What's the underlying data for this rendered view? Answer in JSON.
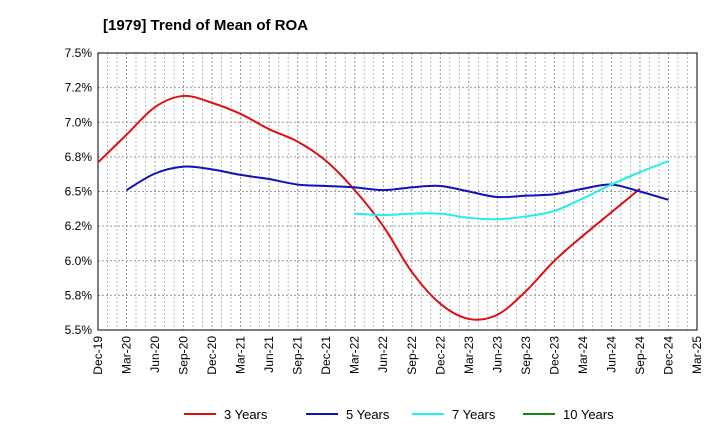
{
  "chart_data": {
    "type": "line",
    "title": "[1979]  Trend of Mean of ROA",
    "xlabel": "",
    "ylabel": "",
    "categories": [
      "Dec-19",
      "Mar-20",
      "Jun-20",
      "Sep-20",
      "Dec-20",
      "Mar-21",
      "Jun-21",
      "Sep-21",
      "Dec-21",
      "Mar-22",
      "Jun-22",
      "Sep-22",
      "Dec-22",
      "Mar-23",
      "Jun-23",
      "Sep-23",
      "Dec-23",
      "Mar-24",
      "Jun-24",
      "Sep-24",
      "Dec-24",
      "Mar-25"
    ],
    "ylim": [
      5.5,
      7.5
    ],
    "yticks": [
      5.5,
      5.75,
      6.0,
      6.25,
      6.5,
      6.75,
      7.0,
      7.25,
      7.5
    ],
    "ytick_labels": [
      "5.5%",
      "5.8%",
      "6.0%",
      "6.2%",
      "6.5%",
      "6.8%",
      "7.0%",
      "7.2%",
      "7.5%"
    ],
    "grid": true,
    "legend_position": "bottom",
    "series": [
      {
        "name": "3 Years",
        "color": "#dd1111",
        "values": [
          6.71,
          6.91,
          7.11,
          7.19,
          7.14,
          7.06,
          6.95,
          6.86,
          6.72,
          6.51,
          6.25,
          5.92,
          5.69,
          5.58,
          5.61,
          5.78,
          6.0,
          6.18,
          6.35,
          6.52,
          null,
          null
        ]
      },
      {
        "name": "5 Years",
        "color": "#1111bb",
        "values": [
          null,
          6.51,
          6.63,
          6.68,
          6.66,
          6.62,
          6.59,
          6.55,
          6.54,
          6.53,
          6.51,
          6.53,
          6.54,
          6.5,
          6.46,
          6.47,
          6.48,
          6.52,
          6.55,
          6.5,
          6.44,
          null
        ]
      },
      {
        "name": "7 Years",
        "color": "#22eeee",
        "values": [
          null,
          null,
          null,
          null,
          null,
          null,
          null,
          null,
          null,
          6.34,
          6.33,
          6.34,
          6.34,
          6.31,
          6.3,
          6.32,
          6.36,
          6.45,
          6.55,
          6.64,
          6.72,
          null
        ]
      },
      {
        "name": "10 Years",
        "color": "#118811",
        "values": [
          null,
          null,
          null,
          null,
          null,
          null,
          null,
          null,
          null,
          null,
          null,
          null,
          null,
          null,
          null,
          null,
          null,
          null,
          null,
          null,
          null,
          null
        ]
      }
    ]
  }
}
